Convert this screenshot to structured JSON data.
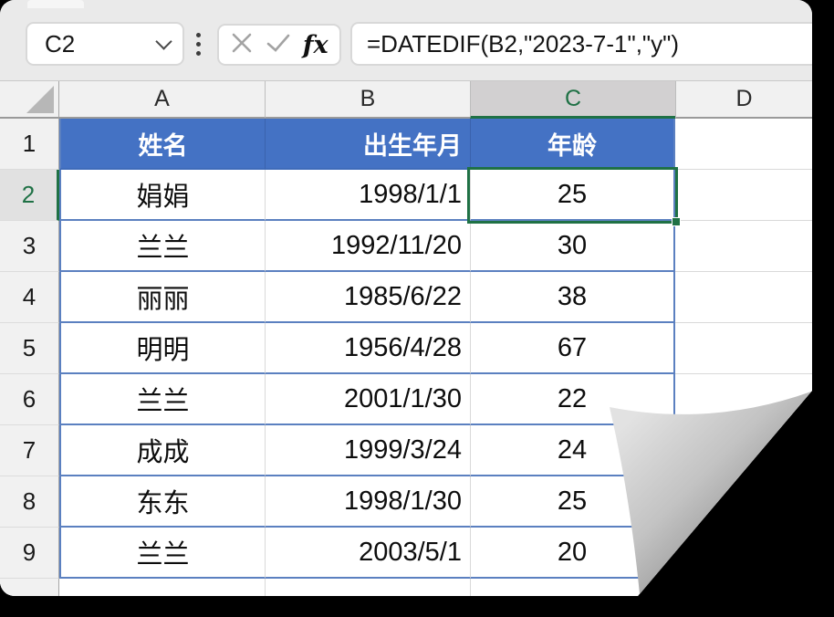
{
  "colors": {
    "table_header_blue": "#4472c4",
    "selection_green": "#1f7145",
    "table_border_blue": "#5b80c0",
    "grid_line_gray": "#d9d9d9"
  },
  "chrome": {
    "name_box_value": "C2",
    "cancel_icon": "cancel-x",
    "enter_icon": "check",
    "fx_label": "fx",
    "formula": "=DATEDIF(B2,\"2023-7-1\",\"y\")"
  },
  "grid": {
    "column_headers": [
      "A",
      "B",
      "C",
      "D"
    ],
    "selected_cell": "C2",
    "selected_column": "C",
    "selected_row": "2",
    "table_headers": [
      "姓名",
      "出生年月",
      "年龄"
    ],
    "rows": [
      {
        "n": "1",
        "a": "姓名",
        "b": "出生年月",
        "c": "年龄",
        "d": "",
        "header": true
      },
      {
        "n": "2",
        "a": "娟娟",
        "b": "1998/1/1",
        "c": "25",
        "d": ""
      },
      {
        "n": "3",
        "a": "兰兰",
        "b": "1992/11/20",
        "c": "30",
        "d": ""
      },
      {
        "n": "4",
        "a": "丽丽",
        "b": "1985/6/22",
        "c": "38",
        "d": ""
      },
      {
        "n": "5",
        "a": "明明",
        "b": "1956/4/28",
        "c": "67",
        "d": ""
      },
      {
        "n": "6",
        "a": "兰兰",
        "b": "2001/1/30",
        "c": "22",
        "d": ""
      },
      {
        "n": "7",
        "a": "成成",
        "b": "1999/3/24",
        "c": "24",
        "d": ""
      },
      {
        "n": "8",
        "a": "东东",
        "b": "1998/1/30",
        "c": "25",
        "d": ""
      },
      {
        "n": "9",
        "a": "兰兰",
        "b": "2003/5/1",
        "c": "20",
        "d": ""
      }
    ]
  }
}
